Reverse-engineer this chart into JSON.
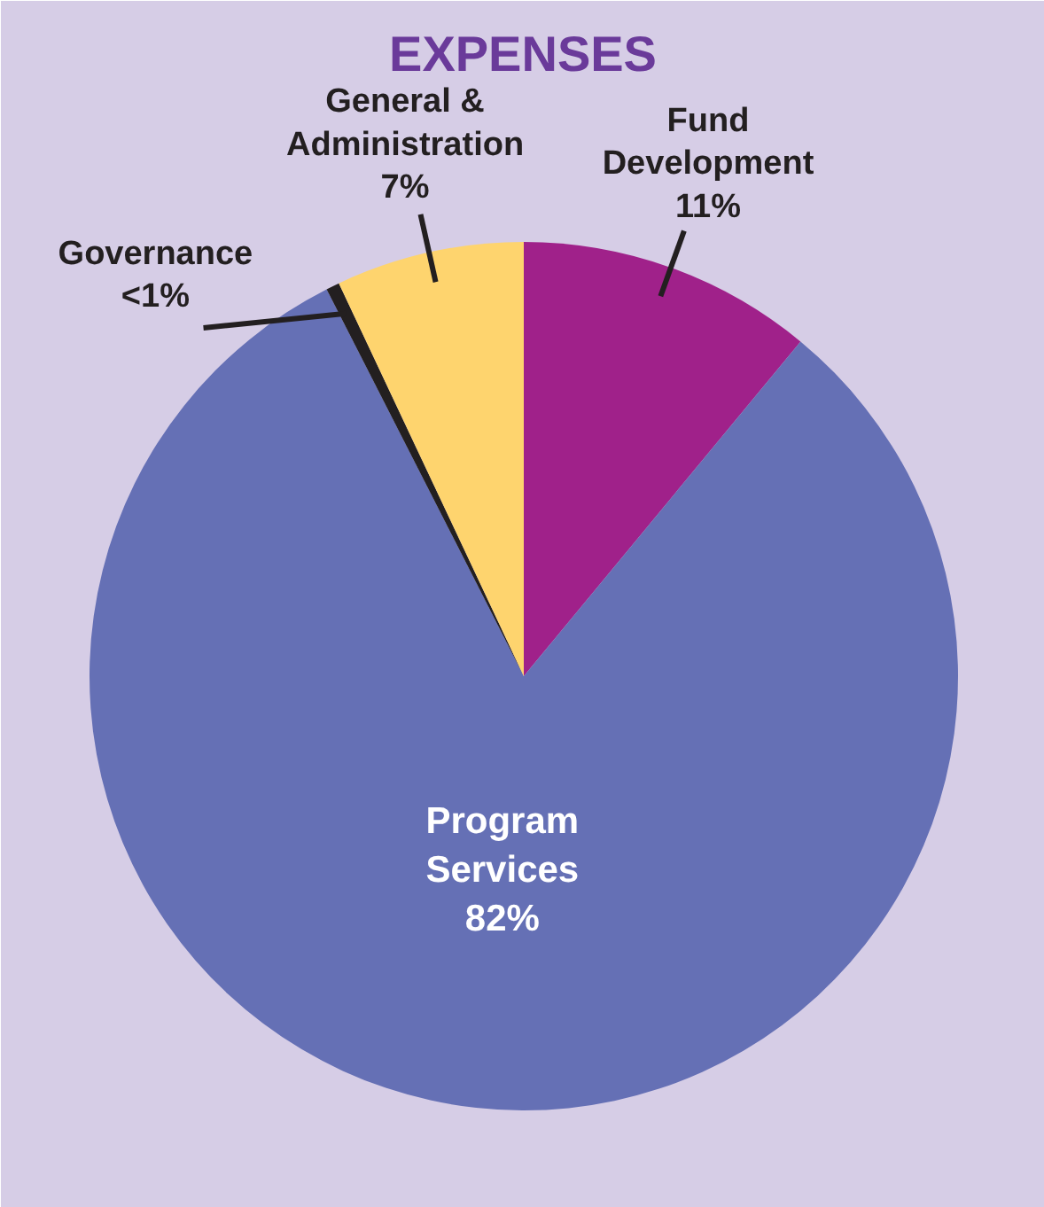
{
  "chart_data": {
    "type": "pie",
    "title": "EXPENSES",
    "categories": [
      "Fund Development",
      "Program Services",
      "Governance",
      "General & Administration"
    ],
    "values": [
      11,
      81.5,
      0.5,
      7
    ],
    "value_labels": [
      "11%",
      "82%",
      "<1%",
      "7%"
    ],
    "colors": [
      "#a0218a",
      "#6570b5",
      "#231f20",
      "#fed46e"
    ]
  }
}
